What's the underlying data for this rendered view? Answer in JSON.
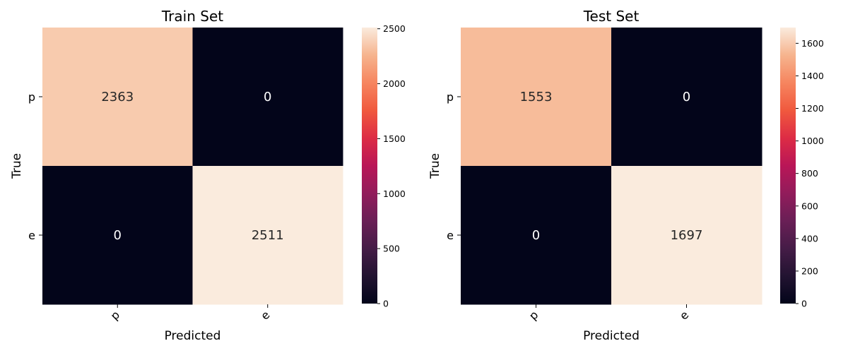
{
  "chart_data": [
    {
      "type": "heatmap",
      "title": "Train Set",
      "xlabel": "Predicted",
      "ylabel": "True",
      "x_categories": [
        "p",
        "e"
      ],
      "y_categories": [
        "p",
        "e"
      ],
      "values": [
        [
          2363,
          0
        ],
        [
          0,
          2511
        ]
      ],
      "annotations": [
        [
          "2363",
          "0"
        ],
        [
          "0",
          "2511"
        ]
      ],
      "colorbar": {
        "range": [
          0,
          2511
        ],
        "ticks": [
          0,
          500,
          1000,
          1500,
          2000,
          2500
        ],
        "tick_labels": [
          "0",
          "500",
          "1000",
          "1500",
          "2000",
          "2500"
        ]
      },
      "colormap": "rocket",
      "grid": false
    },
    {
      "type": "heatmap",
      "title": "Test Set",
      "xlabel": "Predicted",
      "ylabel": "True",
      "x_categories": [
        "p",
        "e"
      ],
      "y_categories": [
        "p",
        "e"
      ],
      "values": [
        [
          1553,
          0
        ],
        [
          0,
          1697
        ]
      ],
      "annotations": [
        [
          "1553",
          "0"
        ],
        [
          "0",
          "1697"
        ]
      ],
      "colorbar": {
        "range": [
          0,
          1697
        ],
        "ticks": [
          0,
          200,
          400,
          600,
          800,
          1000,
          1200,
          1400,
          1600
        ],
        "tick_labels": [
          "0",
          "200",
          "400",
          "600",
          "800",
          "1000",
          "1200",
          "1400",
          "1600"
        ]
      },
      "colormap": "rocket",
      "grid": false
    }
  ]
}
